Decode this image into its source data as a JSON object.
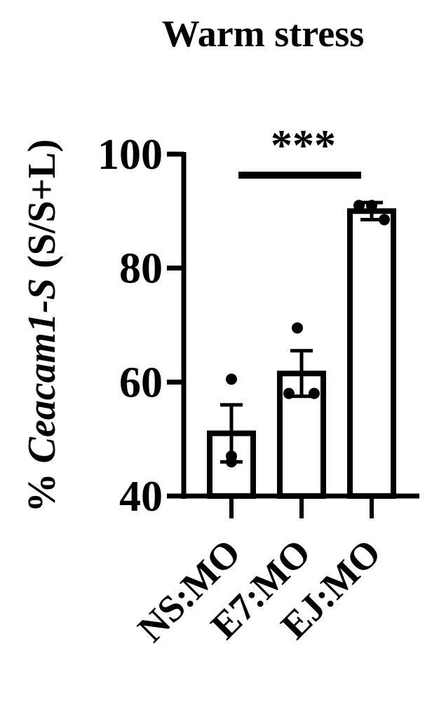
{
  "chart_data": {
    "type": "bar",
    "title": "Warm stress",
    "ylabel_prefix": "% ",
    "ylabel_italic": "Ceacam1-S",
    "ylabel_suffix": " (S/S+L)",
    "xlabel": "",
    "ylim": [
      40,
      100
    ],
    "yticks": [
      40,
      60,
      80,
      100
    ],
    "categories": [
      "NS:MO",
      "E7:MO",
      "EJ:MO"
    ],
    "values": [
      51,
      61.5,
      90
    ],
    "errors": [
      5,
      4,
      1.5
    ],
    "points": [
      [
        60.5,
        47,
        46
      ],
      [
        69.5,
        58,
        58
      ],
      [
        91,
        91,
        88.5
      ]
    ],
    "significance": {
      "from": 0,
      "to": 2,
      "label": "***"
    },
    "bar_fill": "#ffffff",
    "ink": "#000000"
  }
}
